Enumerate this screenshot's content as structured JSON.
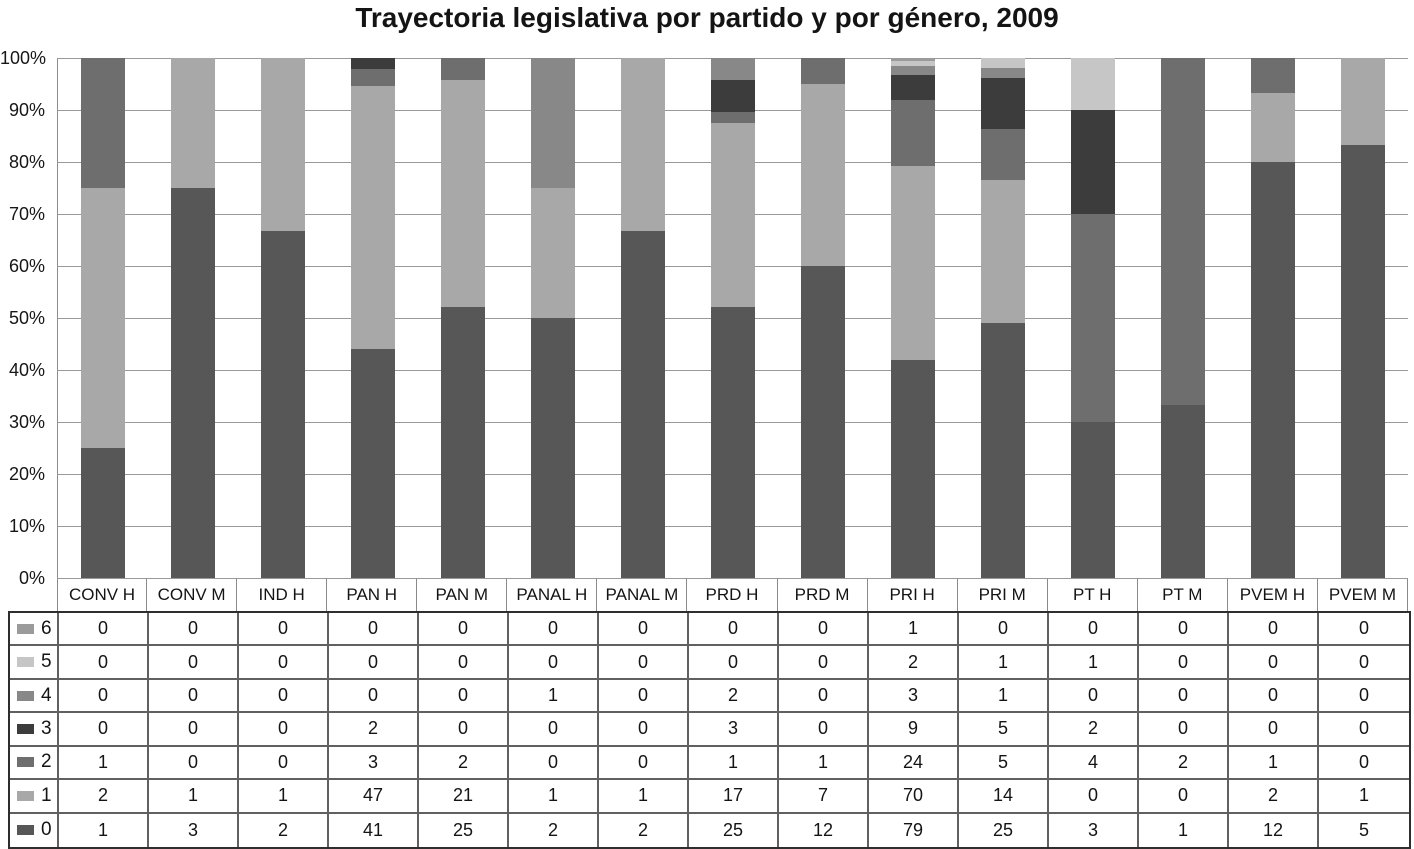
{
  "chart_data": {
    "type": "bar",
    "variant": "stacked-100-percent",
    "title": "Trayectoria legislativa por partido y por género, 2009",
    "xlabel": "",
    "ylabel": "",
    "ylim": [
      0,
      100
    ],
    "grid": true,
    "legend_position": "table-left",
    "y_ticks": [
      "100%",
      "90%",
      "80%",
      "70%",
      "60%",
      "50%",
      "40%",
      "30%",
      "20%",
      "10%",
      "0%"
    ],
    "categories": [
      "CONV H",
      "CONV M",
      "IND H",
      "PAN H",
      "PAN M",
      "PANAL H",
      "PANAL M",
      "PRD H",
      "PRD M",
      "PRI H",
      "PRI M",
      "PT H",
      "PT M",
      "PVEM H",
      "PVEM M"
    ],
    "series": [
      {
        "name": "6",
        "color": "#9b9b9b",
        "values": [
          0,
          0,
          0,
          0,
          0,
          0,
          0,
          0,
          0,
          1,
          0,
          0,
          0,
          0,
          0
        ]
      },
      {
        "name": "5",
        "color": "#c6c6c6",
        "values": [
          0,
          0,
          0,
          0,
          0,
          0,
          0,
          0,
          0,
          2,
          1,
          1,
          0,
          0,
          0
        ]
      },
      {
        "name": "4",
        "color": "#888888",
        "values": [
          0,
          0,
          0,
          0,
          0,
          1,
          0,
          2,
          0,
          3,
          1,
          0,
          0,
          0,
          0
        ]
      },
      {
        "name": "3",
        "color": "#3c3c3c",
        "values": [
          0,
          0,
          0,
          2,
          0,
          0,
          0,
          3,
          0,
          9,
          5,
          2,
          0,
          0,
          0
        ]
      },
      {
        "name": "2",
        "color": "#6e6e6e",
        "values": [
          1,
          0,
          0,
          3,
          2,
          0,
          0,
          1,
          1,
          24,
          5,
          4,
          2,
          1,
          0
        ]
      },
      {
        "name": "1",
        "color": "#a8a8a8",
        "values": [
          2,
          1,
          1,
          47,
          21,
          1,
          1,
          17,
          7,
          70,
          14,
          0,
          0,
          2,
          1
        ]
      },
      {
        "name": "0",
        "color": "#575757",
        "values": [
          1,
          3,
          2,
          41,
          25,
          2,
          2,
          25,
          12,
          79,
          25,
          3,
          1,
          12,
          5
        ]
      }
    ]
  }
}
